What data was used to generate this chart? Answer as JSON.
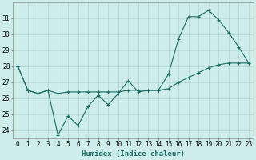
{
  "xlabel": "Humidex (Indice chaleur)",
  "ylabel": "",
  "background_color": "#cdecea",
  "grid_color": "#aed4d0",
  "line_color": "#1a6b63",
  "x_values": [
    0,
    1,
    2,
    3,
    4,
    5,
    6,
    7,
    8,
    9,
    10,
    11,
    12,
    13,
    14,
    15,
    16,
    17,
    18,
    19,
    20,
    21,
    22,
    23
  ],
  "series1": [
    28.0,
    26.5,
    26.3,
    26.5,
    23.7,
    24.9,
    24.3,
    25.5,
    26.2,
    25.6,
    26.3,
    27.1,
    26.4,
    26.5,
    26.5,
    27.5,
    29.7,
    31.1,
    31.1,
    31.5,
    30.9,
    30.1,
    29.2,
    28.2
  ],
  "series2": [
    28.0,
    26.5,
    26.3,
    26.5,
    26.3,
    26.4,
    26.4,
    26.4,
    26.4,
    26.4,
    26.4,
    26.5,
    26.5,
    26.5,
    26.5,
    26.6,
    27.0,
    27.3,
    27.6,
    27.9,
    28.1,
    28.2,
    28.2,
    28.2
  ],
  "ylim": [
    23.5,
    32.0
  ],
  "yticks": [
    24,
    25,
    26,
    27,
    28,
    29,
    30,
    31
  ],
  "xlim": [
    -0.5,
    23.5
  ],
  "xlabel_fontsize": 6.5,
  "tick_fontsize": 5.5
}
